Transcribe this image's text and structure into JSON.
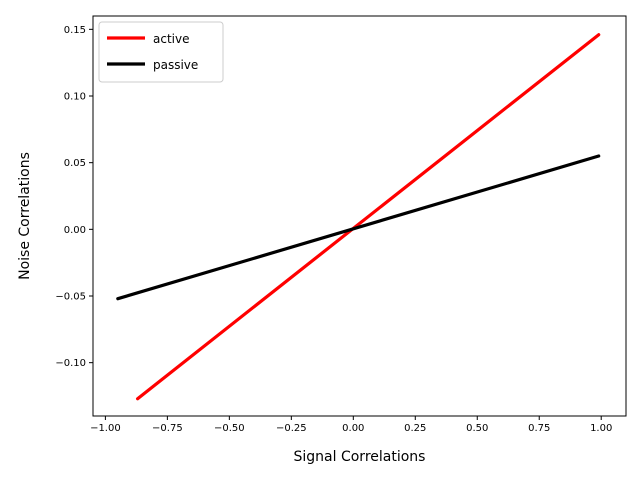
{
  "chart_data": {
    "type": "line",
    "xlabel": "Signal Correlations",
    "ylabel": "Noise Correlations",
    "xlim": [
      -1.05,
      1.1
    ],
    "ylim": [
      -0.14,
      0.16
    ],
    "xticks": [
      -1.0,
      -0.75,
      -0.5,
      -0.25,
      0.0,
      0.25,
      0.5,
      0.75,
      1.0
    ],
    "xtick_labels": [
      "−1.00",
      "−0.75",
      "−0.50",
      "−0.25",
      "0.00",
      "0.25",
      "0.50",
      "0.75",
      "1.00"
    ],
    "yticks": [
      -0.1,
      -0.05,
      0.0,
      0.05,
      0.1,
      0.15
    ],
    "ytick_labels": [
      "−0.10",
      "−0.05",
      "0.00",
      "0.05",
      "0.10",
      "0.15"
    ],
    "grid": false,
    "legend_position": "top-left",
    "series": [
      {
        "name": "active",
        "color": "#ff0000",
        "x": [
          -0.87,
          0.99
        ],
        "y": [
          -0.127,
          0.146
        ]
      },
      {
        "name": "passive",
        "color": "#000000",
        "x": [
          -0.95,
          0.99
        ],
        "y": [
          -0.052,
          0.055
        ]
      }
    ]
  }
}
